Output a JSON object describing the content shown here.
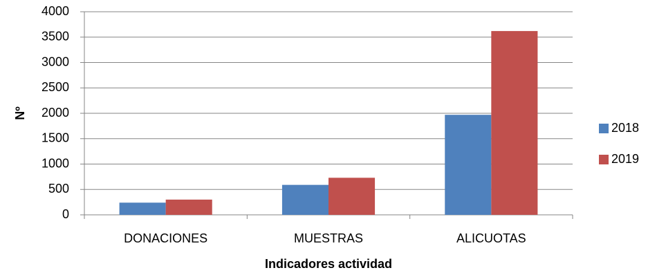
{
  "chart_data": {
    "type": "bar",
    "x_label": "Indicadores actividad",
    "y_label": "Nº",
    "categories": [
      "DONACIONES",
      "MUESTRAS",
      "ALICUOTAS"
    ],
    "series": [
      {
        "name": "2018",
        "color": "#4f81bd",
        "values": [
          240,
          590,
          1970
        ]
      },
      {
        "name": "2019",
        "color": "#c0504d",
        "values": [
          300,
          730,
          3620
        ]
      }
    ],
    "ylim": [
      0,
      4000
    ],
    "yticks": [
      0,
      500,
      1000,
      1500,
      2000,
      2500,
      3000,
      3500,
      4000
    ],
    "grid": true,
    "legend": "right"
  }
}
